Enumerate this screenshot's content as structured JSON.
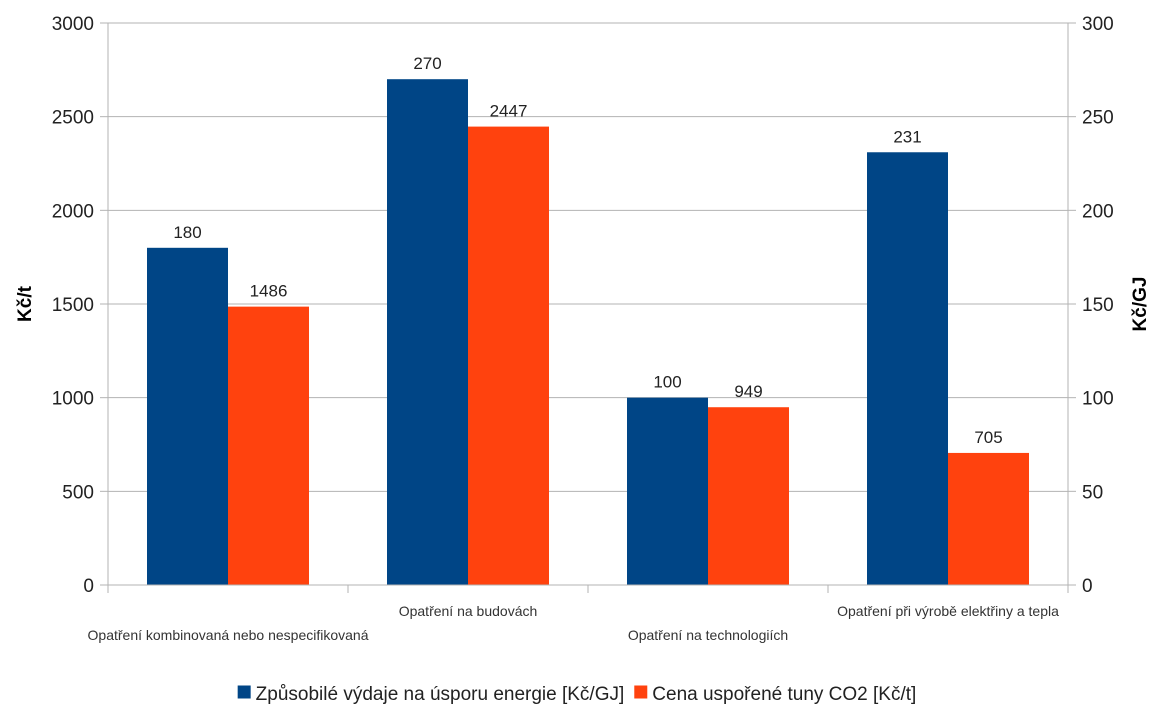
{
  "chart_data": {
    "type": "bar",
    "categories": [
      "Opatření kombinovaná nebo nespecifikovaná",
      "Opatření na budovách",
      "Opatření na technologiích",
      "Opatření při výrobě elektřiny a tepla"
    ],
    "series": [
      {
        "name": "Způsobilé výdaje na úsporu energie [Kč/GJ]",
        "axis": "right",
        "color": "#004586",
        "values": [
          180,
          270,
          100,
          231
        ]
      },
      {
        "name": "Cena uspořené tuny CO2 [Kč/t]",
        "axis": "left",
        "color": "#ff420e",
        "values": [
          1486,
          2447,
          949,
          705
        ]
      }
    ],
    "ylabel": "Kč/t",
    "y2label": "Kč/GJ",
    "ylim": [
      0,
      3000
    ],
    "y2lim": [
      0,
      300
    ],
    "yticks": [
      "0",
      "500",
      "1000",
      "1500",
      "2000",
      "2500",
      "3000"
    ],
    "y2ticks": [
      "0",
      "50",
      "100",
      "150",
      "200",
      "250",
      "300"
    ],
    "grid": true,
    "legend_position": "bottom"
  }
}
